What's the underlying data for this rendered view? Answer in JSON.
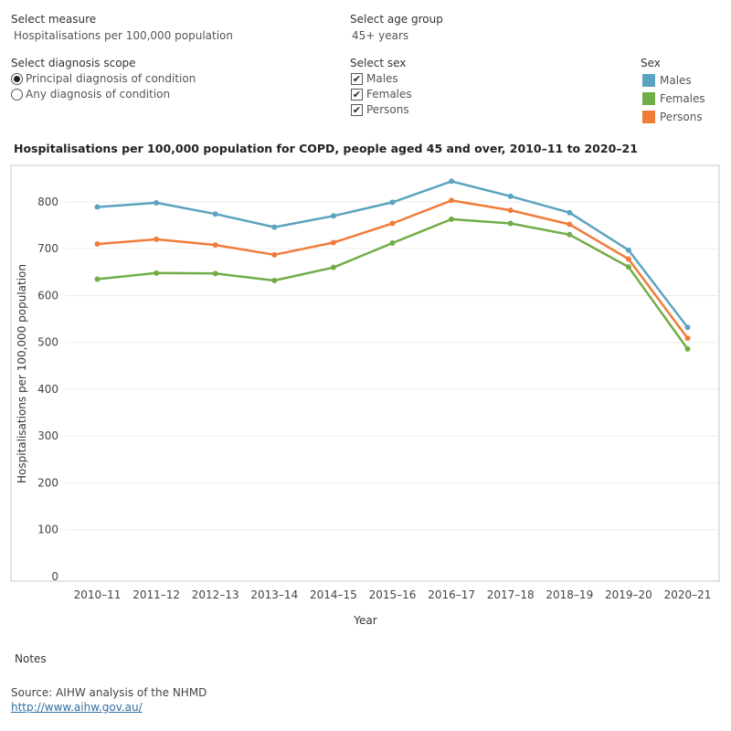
{
  "controls": {
    "measure": {
      "label": "Select measure",
      "value": "Hospitalisations per 100,000 population"
    },
    "age_group": {
      "label": "Select age group",
      "value": "45+ years"
    },
    "diagnosis_scope": {
      "label": "Select diagnosis scope",
      "options": [
        "Principal diagnosis of condition",
        "Any diagnosis of condition"
      ],
      "selected": 0
    },
    "sex": {
      "label": "Select sex",
      "options": [
        "Males",
        "Females",
        "Persons"
      ]
    }
  },
  "legend": {
    "title": "Sex",
    "items": [
      {
        "label": "Males",
        "color": "#5ba3c0"
      },
      {
        "label": "Females",
        "color": "#71ad47"
      },
      {
        "label": "Persons",
        "color": "#f07c3a"
      }
    ]
  },
  "footer": {
    "notes": "Notes",
    "source": "Source: AIHW analysis of the NHMD",
    "link": "http://www.aihw.gov.au/"
  },
  "chart_data": {
    "type": "line",
    "title": "Hospitalisations per 100,000 population for COPD, people aged 45 and over, 2010–11 to 2020–21",
    "xlabel": "Year",
    "ylabel": "Hospitalisations per 100,000 population",
    "ylim": [
      0,
      900
    ],
    "yticks": [
      0,
      100,
      200,
      300,
      400,
      500,
      600,
      700,
      800
    ],
    "grid": true,
    "categories": [
      "2010–11",
      "2011–12",
      "2012–13",
      "2013–14",
      "2014–15",
      "2015–16",
      "2016–17",
      "2017–18",
      "2018–19",
      "2019–20",
      "2020–21"
    ],
    "series": [
      {
        "name": "Males",
        "color": "#5ba3c0",
        "values": [
          789,
          798,
          774,
          746,
          770,
          799,
          844,
          812,
          777,
          697,
          532
        ]
      },
      {
        "name": "Females",
        "color": "#71ad47",
        "values": [
          635,
          648,
          647,
          632,
          660,
          712,
          763,
          754,
          730,
          661,
          486
        ]
      },
      {
        "name": "Persons",
        "color": "#f07c3a",
        "values": [
          710,
          720,
          708,
          687,
          713,
          754,
          803,
          782,
          752,
          678,
          509
        ]
      }
    ]
  }
}
